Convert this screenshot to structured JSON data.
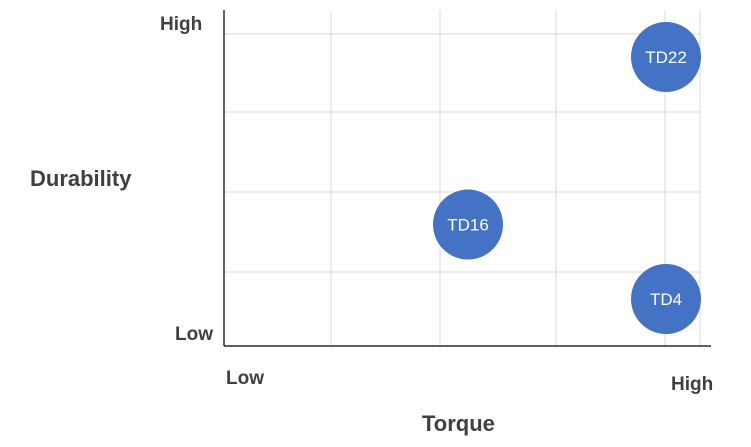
{
  "chart_data": {
    "type": "bubble",
    "xlabel": "Torque",
    "ylabel": "Durability",
    "x_tick_labels": {
      "min": "Low",
      "max": "High"
    },
    "y_tick_labels": {
      "min": "Low",
      "max": "High"
    },
    "xlim": [
      0,
      1
    ],
    "ylim": [
      0,
      1
    ],
    "grid": true,
    "points": [
      {
        "label": "TD22",
        "x": 1.0,
        "y": 0.93
      },
      {
        "label": "TD16",
        "x": 0.55,
        "y": 0.39
      },
      {
        "label": "TD4",
        "x": 1.0,
        "y": 0.15
      }
    ],
    "colors": {
      "bubble": "#4472C4",
      "bubble_text": "#FFFFFF",
      "grid": "#D9D9D9",
      "axis": "#000000",
      "text": "#404040"
    }
  }
}
